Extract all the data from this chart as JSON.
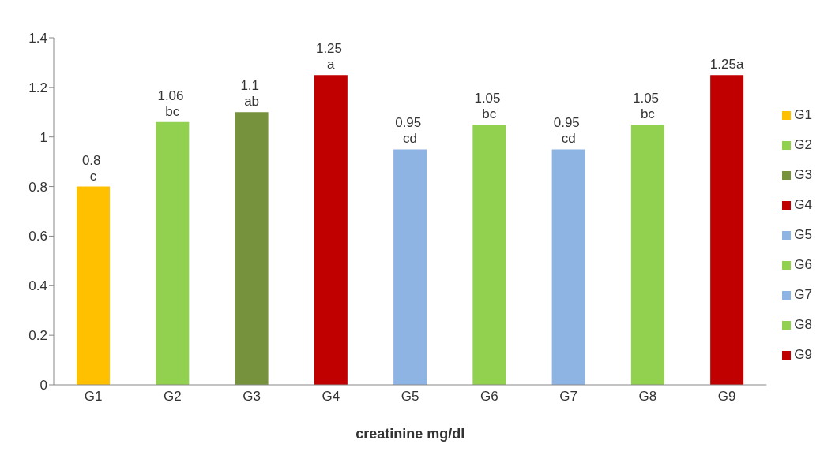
{
  "chart_data": {
    "type": "bar",
    "xlabel": "creatinine mg/dl",
    "stacked": true,
    "categories": [
      "G1",
      "G2",
      "G3",
      "G4",
      "G5",
      "G6",
      "G7",
      "G8",
      "G9"
    ],
    "series": [
      {
        "name": "G1",
        "color": "#ffc000",
        "values": [
          0.8,
          null,
          null,
          null,
          null,
          null,
          null,
          null,
          null
        ],
        "value_labels": [
          "0.8\nc",
          null,
          null,
          null,
          null,
          null,
          null,
          null,
          null
        ]
      },
      {
        "name": "G2",
        "color": "#92d050",
        "values": [
          null,
          1.06,
          null,
          null,
          null,
          null,
          null,
          null,
          null
        ],
        "value_labels": [
          null,
          "1.06\nbc",
          null,
          null,
          null,
          null,
          null,
          null,
          null
        ]
      },
      {
        "name": "G3",
        "color": "#76923c",
        "values": [
          null,
          null,
          1.1,
          null,
          null,
          null,
          null,
          null,
          null
        ],
        "value_labels": [
          null,
          null,
          "1.1\nab",
          null,
          null,
          null,
          null,
          null,
          null
        ]
      },
      {
        "name": "G4",
        "color": "#c00000",
        "values": [
          null,
          null,
          null,
          1.25,
          null,
          null,
          null,
          null,
          null
        ],
        "value_labels": [
          null,
          null,
          null,
          "1.25\na",
          null,
          null,
          null,
          null,
          null
        ]
      },
      {
        "name": "G5",
        "color": "#8eb4e3",
        "values": [
          null,
          null,
          null,
          null,
          0.95,
          null,
          null,
          null,
          null
        ],
        "value_labels": [
          null,
          null,
          null,
          null,
          "0.95\ncd",
          null,
          null,
          null,
          null
        ]
      },
      {
        "name": "G6",
        "color": "#92d050",
        "values": [
          null,
          null,
          null,
          null,
          null,
          1.05,
          null,
          null,
          null
        ],
        "value_labels": [
          null,
          null,
          null,
          null,
          null,
          "1.05\nbc",
          null,
          null,
          null
        ]
      },
      {
        "name": "G7",
        "color": "#8eb4e3",
        "values": [
          null,
          null,
          null,
          null,
          null,
          null,
          0.95,
          null,
          null
        ],
        "value_labels": [
          null,
          null,
          null,
          null,
          null,
          null,
          "0.95\ncd",
          null,
          null
        ]
      },
      {
        "name": "G8",
        "color": "#92d050",
        "values": [
          null,
          null,
          null,
          null,
          null,
          null,
          null,
          1.05,
          null
        ],
        "value_labels": [
          null,
          null,
          null,
          null,
          null,
          null,
          null,
          "1.05\nbc",
          null
        ]
      },
      {
        "name": "G9",
        "color": "#c00000",
        "values": [
          null,
          null,
          null,
          null,
          null,
          null,
          null,
          null,
          1.25
        ],
        "value_labels": [
          null,
          null,
          null,
          null,
          null,
          null,
          null,
          null,
          "1.25a"
        ]
      }
    ],
    "ylim": [
      0,
      1.4
    ],
    "yticks": [
      0,
      0.2,
      0.4,
      0.6,
      0.8,
      1,
      1.2,
      1.4
    ],
    "legend": "right"
  }
}
